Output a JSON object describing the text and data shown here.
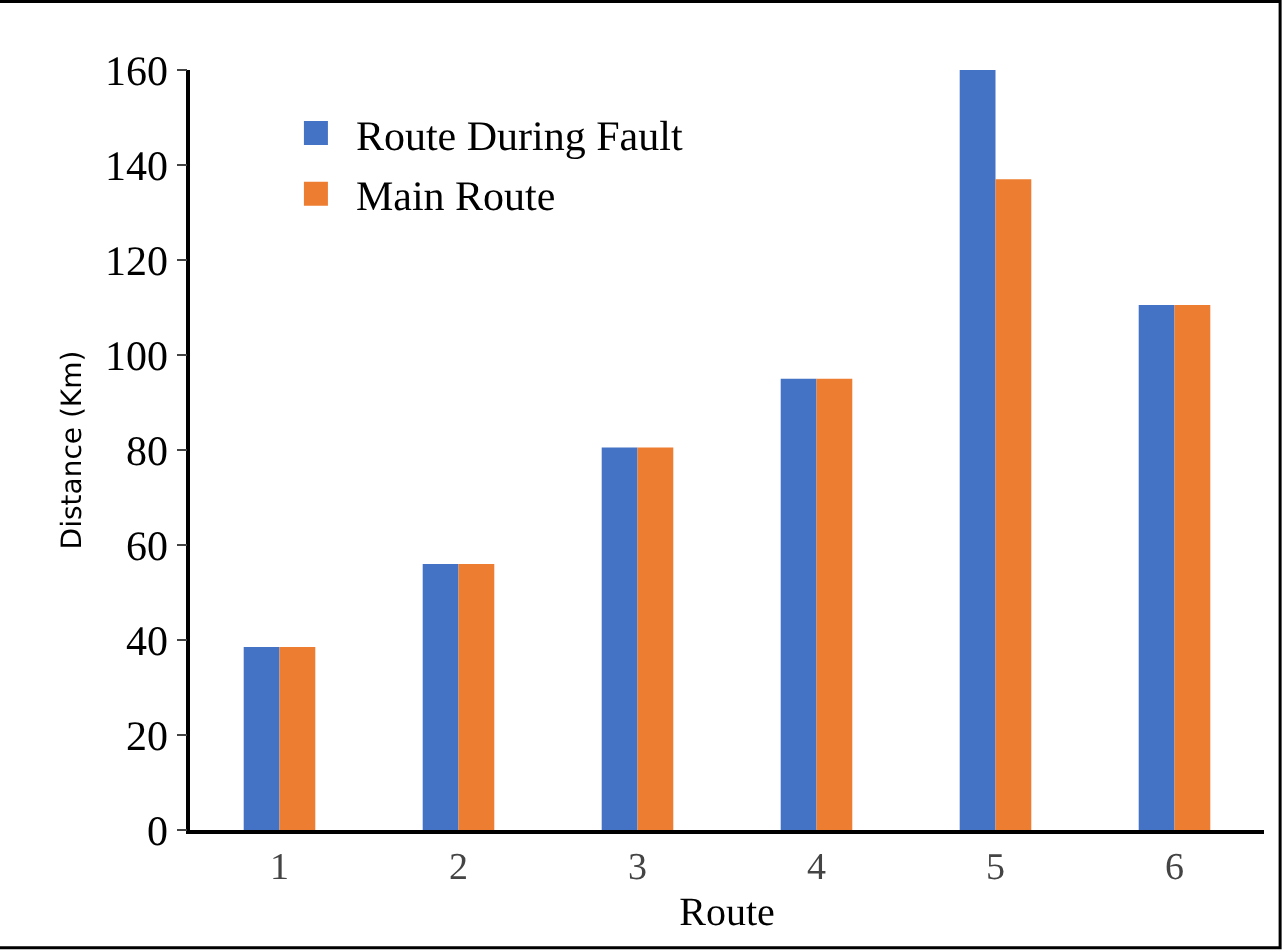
{
  "chart_data": {
    "type": "bar",
    "xlabel": "Route",
    "ylabel": "Distance (Km)",
    "categories": [
      "1",
      "2",
      "3",
      "4",
      "5",
      "6"
    ],
    "series": [
      {
        "name": "Route During Fault",
        "color": "#4472c4",
        "values": [
          38.5,
          56,
          80.5,
          95,
          160,
          110.5
        ]
      },
      {
        "name": "Main Route",
        "color": "#ed7d31",
        "values": [
          38.5,
          56,
          80.5,
          95,
          137,
          110.5
        ]
      }
    ],
    "ylim": [
      0,
      160
    ],
    "yticks": [
      0,
      20,
      40,
      60,
      80,
      100,
      120,
      140,
      160
    ],
    "legend": "top left"
  }
}
